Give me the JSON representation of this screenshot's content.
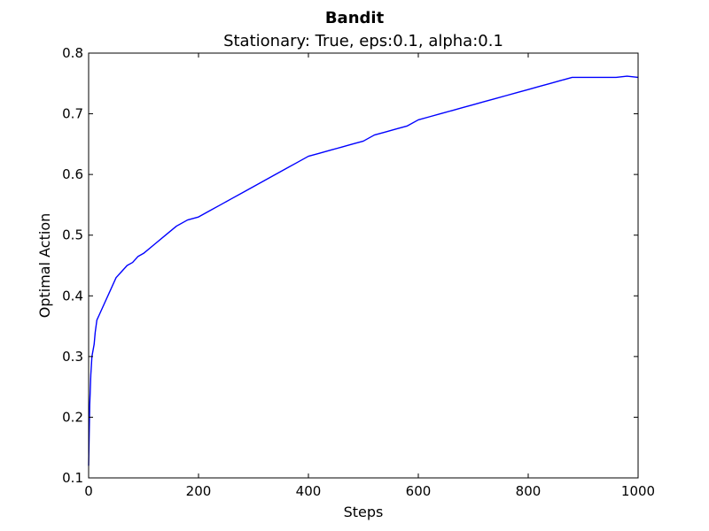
{
  "chart_data": {
    "type": "line",
    "title": "Bandit",
    "subtitle": "Stationary: True, eps:0.1, alpha:0.1",
    "xlabel": "Steps",
    "ylabel": "Optimal Action",
    "xlim": [
      0,
      1000
    ],
    "ylim": [
      0.1,
      0.8
    ],
    "x_ticks": [
      0,
      200,
      400,
      600,
      800,
      1000
    ],
    "y_ticks": [
      0.1,
      0.2,
      0.3,
      0.4,
      0.5,
      0.6,
      0.7,
      0.8
    ],
    "x_tick_labels": [
      "0",
      "200",
      "400",
      "600",
      "800",
      "1000"
    ],
    "y_tick_labels": [
      "0.1",
      "0.2",
      "0.3",
      "0.4",
      "0.5",
      "0.6",
      "0.7",
      "0.8"
    ],
    "grid": false,
    "legend": "none",
    "series": [
      {
        "color": "#0000ff",
        "x": [
          0,
          2,
          4,
          6,
          8,
          10,
          12,
          15,
          20,
          25,
          30,
          40,
          50,
          60,
          70,
          80,
          90,
          100,
          120,
          140,
          160,
          180,
          200,
          220,
          240,
          260,
          280,
          300,
          320,
          340,
          360,
          380,
          400,
          420,
          440,
          460,
          480,
          500,
          520,
          540,
          560,
          580,
          600,
          620,
          640,
          660,
          680,
          700,
          720,
          740,
          760,
          780,
          800,
          820,
          840,
          860,
          880,
          900,
          920,
          940,
          960,
          980,
          1000
        ],
        "y": [
          0.12,
          0.22,
          0.27,
          0.3,
          0.31,
          0.32,
          0.34,
          0.36,
          0.37,
          0.38,
          0.39,
          0.41,
          0.43,
          0.44,
          0.45,
          0.455,
          0.465,
          0.47,
          0.485,
          0.5,
          0.515,
          0.525,
          0.53,
          0.54,
          0.55,
          0.56,
          0.57,
          0.58,
          0.59,
          0.6,
          0.61,
          0.62,
          0.63,
          0.635,
          0.64,
          0.645,
          0.65,
          0.655,
          0.665,
          0.67,
          0.675,
          0.68,
          0.69,
          0.695,
          0.7,
          0.705,
          0.71,
          0.715,
          0.72,
          0.725,
          0.73,
          0.735,
          0.74,
          0.745,
          0.75,
          0.755,
          0.76,
          0.76,
          0.76,
          0.76,
          0.76,
          0.762,
          0.76
        ]
      }
    ]
  }
}
